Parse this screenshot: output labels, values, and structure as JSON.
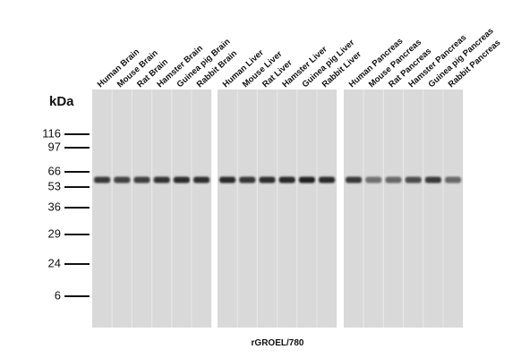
{
  "lanes": [
    "Human Brain",
    "Mouse Brain",
    "Rat Brain",
    "Hamster Brain",
    "Guinea pig Brain",
    "Rabbit Brain",
    "Human Liver",
    "Mouse Liver",
    "Rat Liver",
    "Hamster Liver",
    "Guinea pig Liver",
    "Rabbit Liver",
    "Human Pancreas",
    "Mouse Pancreas",
    "Rat Pancreas",
    "Hamster Pancreas",
    "Guinea pig Pancreas",
    "Rabbit Pancreas"
  ],
  "unit": "kDa",
  "markers": [
    "116",
    "97",
    "66",
    "53",
    "36",
    "29",
    "24",
    "6"
  ],
  "caption": "rGROEL/780"
}
